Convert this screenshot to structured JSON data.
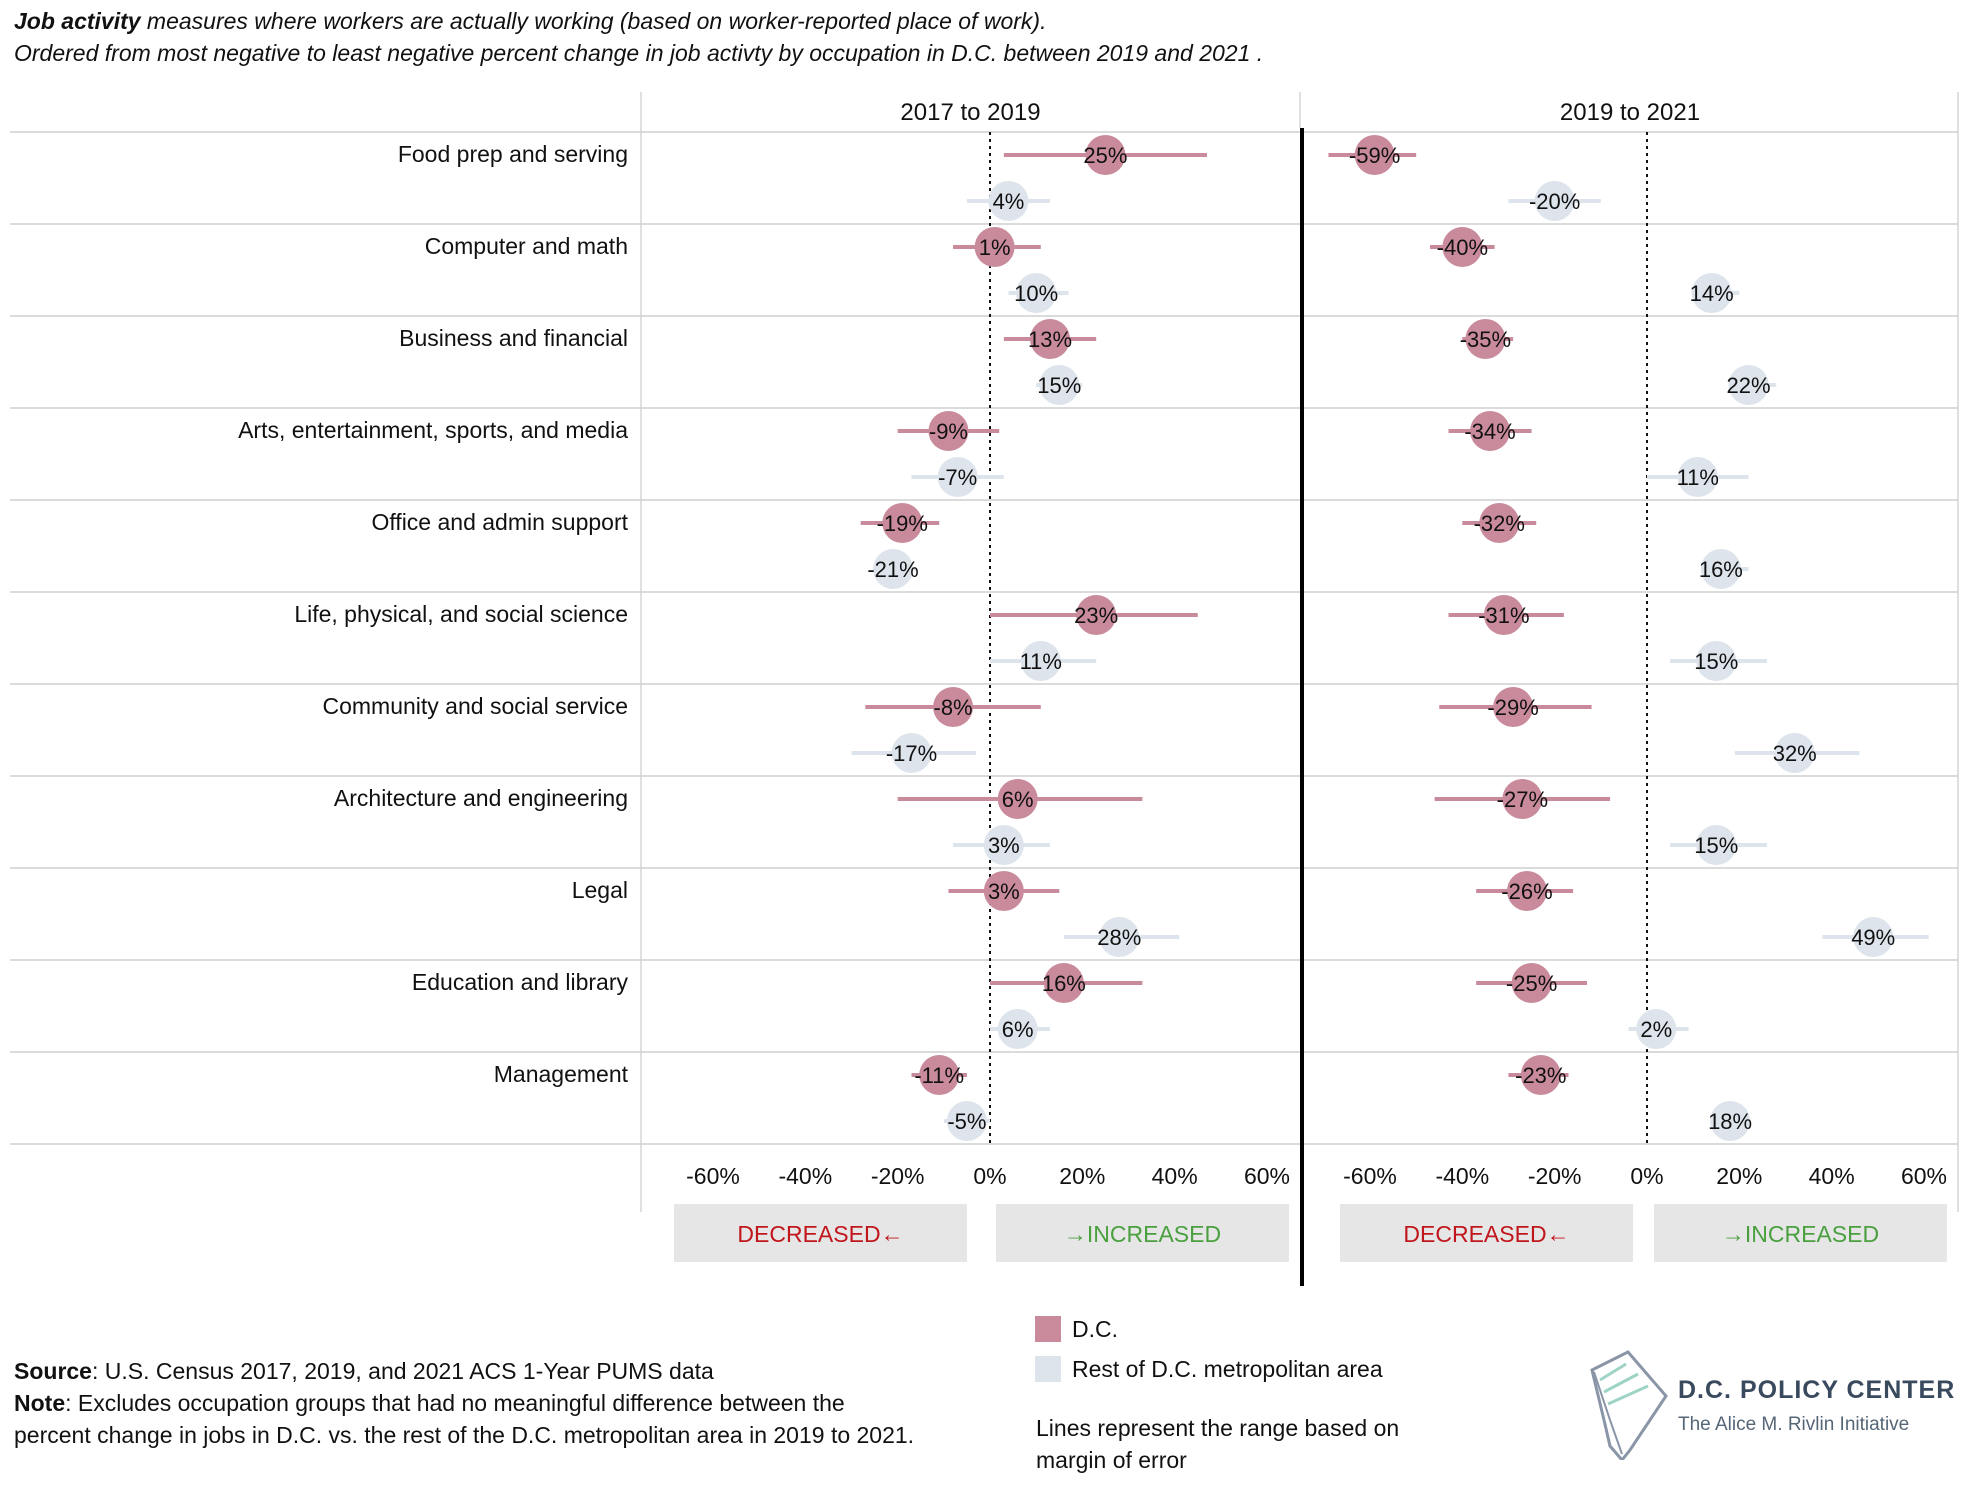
{
  "intro": {
    "line1_bold": "Job activity",
    "line1_rest": " measures where workers are actually working (based on worker-reported place of work).",
    "line2": "Ordered from most negative to least negative percent change in job activty by occupation in D.C. between 2019 and 2021 ."
  },
  "colors": {
    "dc": "#c98b9b",
    "rest": "#dde4ec",
    "decreased": "#c0161c",
    "increased": "#4aa03f"
  },
  "direction_labels": {
    "decreased": "DECREASED←",
    "increased": "→INCREASED"
  },
  "chart_data": {
    "type": "dot-range",
    "series": [
      {
        "name": "D.C.",
        "color": "#c98b9b"
      },
      {
        "name": "Rest of D.C. metropolitan area",
        "color": "#dde4ec"
      }
    ],
    "x_range": [
      -60,
      60
    ],
    "x_ticks": [
      "-60%",
      "-40%",
      "-20%",
      "0%",
      "20%",
      "40%",
      "60%"
    ],
    "panels": [
      {
        "title": "2017 to 2019",
        "rows": [
          {
            "category": "Food prep and serving",
            "dc": {
              "value": 25,
              "low": 3,
              "high": 47,
              "label": "25%"
            },
            "rest": {
              "value": 4,
              "low": -5,
              "high": 13,
              "label": "4%"
            }
          },
          {
            "category": "Computer and math",
            "dc": {
              "value": 1,
              "low": -8,
              "high": 11,
              "label": "1%"
            },
            "rest": {
              "value": 10,
              "low": 4,
              "high": 17,
              "label": "10%"
            }
          },
          {
            "category": "Business and financial",
            "dc": {
              "value": 13,
              "low": 3,
              "high": 23,
              "label": "13%"
            },
            "rest": {
              "value": 15,
              "low": 10,
              "high": 20,
              "label": "15%"
            }
          },
          {
            "category": "Arts, entertainment, sports, and media",
            "dc": {
              "value": -9,
              "low": -20,
              "high": 2,
              "label": "-9%"
            },
            "rest": {
              "value": -7,
              "low": -17,
              "high": 3,
              "label": "-7%"
            }
          },
          {
            "category": "Office and admin support",
            "dc": {
              "value": -19,
              "low": -28,
              "high": -11,
              "label": "-19%"
            },
            "rest": {
              "value": -21,
              "low": -25,
              "high": -16,
              "label": "-21%"
            }
          },
          {
            "category": "Life, physical, and social science",
            "dc": {
              "value": 23,
              "low": 0,
              "high": 45,
              "label": "23%"
            },
            "rest": {
              "value": 11,
              "low": 0,
              "high": 23,
              "label": "11%"
            }
          },
          {
            "category": "Community and social service",
            "dc": {
              "value": -8,
              "low": -27,
              "high": 11,
              "label": "-8%"
            },
            "rest": {
              "value": -17,
              "low": -30,
              "high": -3,
              "label": "-17%"
            }
          },
          {
            "category": "Architecture and engineering",
            "dc": {
              "value": 6,
              "low": -20,
              "high": 33,
              "label": "6%"
            },
            "rest": {
              "value": 3,
              "low": -8,
              "high": 13,
              "label": "3%"
            }
          },
          {
            "category": "Legal",
            "dc": {
              "value": 3,
              "low": -9,
              "high": 15,
              "label": "3%"
            },
            "rest": {
              "value": 28,
              "low": 16,
              "high": 41,
              "label": "28%"
            }
          },
          {
            "category": "Education and library",
            "dc": {
              "value": 16,
              "low": 0,
              "high": 33,
              "label": "16%"
            },
            "rest": {
              "value": 6,
              "low": 0,
              "high": 13,
              "label": "6%"
            }
          },
          {
            "category": "Management",
            "dc": {
              "value": -11,
              "low": -17,
              "high": -5,
              "label": "-11%"
            },
            "rest": {
              "value": -5,
              "low": -10,
              "high": 0,
              "label": "-5%"
            }
          }
        ]
      },
      {
        "title": "2019 to 2021",
        "rows": [
          {
            "category": "Food prep and serving",
            "dc": {
              "value": -59,
              "low": -69,
              "high": -50,
              "label": "-59%"
            },
            "rest": {
              "value": -20,
              "low": -30,
              "high": -10,
              "label": "-20%"
            }
          },
          {
            "category": "Computer and math",
            "dc": {
              "value": -40,
              "low": -47,
              "high": -33,
              "label": "-40%"
            },
            "rest": {
              "value": 14,
              "low": 10,
              "high": 20,
              "label": "14%"
            }
          },
          {
            "category": "Business and financial",
            "dc": {
              "value": -35,
              "low": -40,
              "high": -29,
              "label": "-35%"
            },
            "rest": {
              "value": 22,
              "low": 18,
              "high": 28,
              "label": "22%"
            }
          },
          {
            "category": "Arts, entertainment, sports, and media",
            "dc": {
              "value": -34,
              "low": -43,
              "high": -25,
              "label": "-34%"
            },
            "rest": {
              "value": 11,
              "low": 0,
              "high": 22,
              "label": "11%"
            }
          },
          {
            "category": "Office and admin support",
            "dc": {
              "value": -32,
              "low": -40,
              "high": -24,
              "label": "-32%"
            },
            "rest": {
              "value": 16,
              "low": 12,
              "high": 22,
              "label": "16%"
            }
          },
          {
            "category": "Life, physical, and social science",
            "dc": {
              "value": -31,
              "low": -43,
              "high": -18,
              "label": "-31%"
            },
            "rest": {
              "value": 15,
              "low": 5,
              "high": 26,
              "label": "15%"
            }
          },
          {
            "category": "Community and social service",
            "dc": {
              "value": -29,
              "low": -45,
              "high": -12,
              "label": "-29%"
            },
            "rest": {
              "value": 32,
              "low": 19,
              "high": 46,
              "label": "32%"
            }
          },
          {
            "category": "Architecture and engineering",
            "dc": {
              "value": -27,
              "low": -46,
              "high": -8,
              "label": "-27%"
            },
            "rest": {
              "value": 15,
              "low": 5,
              "high": 26,
              "label": "15%"
            }
          },
          {
            "category": "Legal",
            "dc": {
              "value": -26,
              "low": -37,
              "high": -16,
              "label": "-26%"
            },
            "rest": {
              "value": 49,
              "low": 38,
              "high": 61,
              "label": "49%"
            }
          },
          {
            "category": "Education and library",
            "dc": {
              "value": -25,
              "low": -37,
              "high": -13,
              "label": "-25%"
            },
            "rest": {
              "value": 2,
              "low": -4,
              "high": 9,
              "label": "2%"
            }
          },
          {
            "category": "Management",
            "dc": {
              "value": -23,
              "low": -30,
              "high": -17,
              "label": "-23%"
            },
            "rest": {
              "value": 18,
              "low": 15,
              "high": 22,
              "label": "18%"
            }
          }
        ]
      }
    ]
  },
  "legend": {
    "dc": "D.C.",
    "rest": "Rest of D.C. metropolitan area",
    "lines_note": "Lines represent the range based on margin of error"
  },
  "footer": {
    "source_label": "Source",
    "source_text": ": U.S. Census 2017, 2019, and 2021 ACS 1-Year PUMS data",
    "note_label": "Note",
    "note_line1": ": Excludes occupation groups that had no meaningful difference between the",
    "note_line2": "percent change in jobs in D.C. vs. the rest of the D.C. metropolitan area in 2019 to 2021."
  },
  "logo": {
    "icon": "dc-map-icon",
    "title": "D.C. POLICY CENTER",
    "subtitle": "The Alice M. Rivlin Initiative"
  }
}
